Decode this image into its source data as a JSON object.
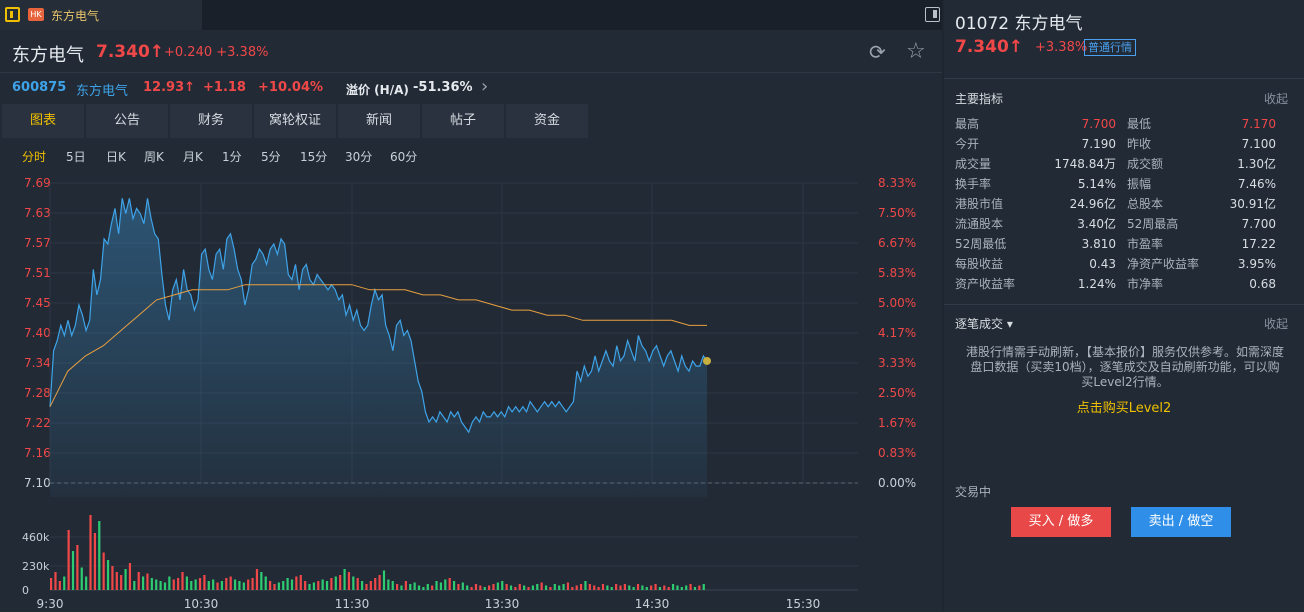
{
  "tab": {
    "market_badge": "HK",
    "name": "东方电气"
  },
  "header": {
    "name": "东方电气",
    "price": "7.340↑",
    "change": "+0.240",
    "pct": "+3.38%"
  },
  "ashare": {
    "code": "600875",
    "name": "东方电气",
    "price": "12.93↑",
    "change": "+1.18",
    "pct": "+10.04%",
    "premium_label": "溢价 (H/A)",
    "premium_value": "-51.36%"
  },
  "tabs": [
    "图表",
    "公告",
    "财务",
    "窝轮权证",
    "新闻",
    "帖子",
    "资金"
  ],
  "periods": [
    "分时",
    "5日",
    "日K",
    "周K",
    "月K",
    "1分",
    "5分",
    "15分",
    "30分",
    "60分"
  ],
  "icons": {
    "refresh": "refresh-icon",
    "star": "star-icon",
    "arrow": "chevron-right-icon"
  },
  "colors": {
    "up": "#f04848",
    "down": "#2ecc71",
    "line": "#3ea3e8",
    "avg": "#e8a040",
    "accent": "#f0c000"
  },
  "chart_data": {
    "type": "line",
    "y_left_ticks": [
      "7.69",
      "7.63",
      "7.57",
      "7.51",
      "7.45",
      "7.40",
      "7.34",
      "7.28",
      "7.22",
      "7.16",
      "7.10"
    ],
    "y_right_ticks": [
      "8.33%",
      "7.50%",
      "6.67%",
      "5.83%",
      "5.00%",
      "4.17%",
      "3.33%",
      "2.50%",
      "1.67%",
      "0.83%",
      "0.00%"
    ],
    "ylim": [
      7.1,
      7.69
    ],
    "x_ticks": [
      "9:30",
      "10:30",
      "11:30",
      "13:30",
      "14:30",
      "15:30"
    ],
    "volume_ticks": [
      "460k",
      "230k",
      "0"
    ],
    "price": [
      7.25,
      7.36,
      7.38,
      7.41,
      7.39,
      7.42,
      7.39,
      7.41,
      7.45,
      7.43,
      7.4,
      7.42,
      7.52,
      7.47,
      7.5,
      7.58,
      7.57,
      7.61,
      7.64,
      7.59,
      7.66,
      7.63,
      7.66,
      7.62,
      7.64,
      7.63,
      7.61,
      7.66,
      7.62,
      7.59,
      7.58,
      7.51,
      7.45,
      7.42,
      7.48,
      7.5,
      7.46,
      7.52,
      7.48,
      7.47,
      7.44,
      7.46,
      7.55,
      7.56,
      7.52,
      7.5,
      7.55,
      7.56,
      7.52,
      7.58,
      7.59,
      7.56,
      7.52,
      7.5,
      7.45,
      7.48,
      7.53,
      7.54,
      7.56,
      7.55,
      7.53,
      7.56,
      7.57,
      7.55,
      7.58,
      7.57,
      7.51,
      7.5,
      7.53,
      7.48,
      7.52,
      7.53,
      7.5,
      7.49,
      7.51,
      7.5,
      7.49,
      7.48,
      7.49,
      7.48,
      7.46,
      7.47,
      7.43,
      7.45,
      7.42,
      7.44,
      7.41,
      7.4,
      7.41,
      7.45,
      7.48,
      7.46,
      7.47,
      7.41,
      7.39,
      7.36,
      7.41,
      7.42,
      7.39,
      7.4,
      7.38,
      7.34,
      7.3,
      7.28,
      7.24,
      7.22,
      7.23,
      7.22,
      7.24,
      7.23,
      7.22,
      7.24,
      7.23,
      7.24,
      7.22,
      7.21,
      7.2,
      7.22,
      7.23,
      7.22,
      7.24,
      7.23,
      7.23,
      7.24,
      7.23,
      7.24,
      7.23,
      7.25,
      7.24,
      7.25,
      7.24,
      7.25,
      7.24,
      7.26,
      7.25,
      7.24,
      7.25,
      7.26,
      7.25,
      7.26,
      7.25,
      7.26,
      7.25,
      7.24,
      7.25,
      7.26,
      7.32,
      7.3,
      7.33,
      7.31,
      7.32,
      7.35,
      7.32,
      7.34,
      7.36,
      7.34,
      7.33,
      7.37,
      7.34,
      7.35,
      7.38,
      7.36,
      7.34,
      7.39,
      7.37,
      7.36,
      7.34,
      7.36,
      7.37,
      7.35,
      7.33,
      7.35,
      7.36,
      7.34,
      7.32,
      7.35,
      7.33,
      7.32,
      7.34,
      7.33,
      7.33,
      7.35,
      7.34
    ],
    "avg": [
      7.25,
      7.32,
      7.35,
      7.37,
      7.4,
      7.43,
      7.46,
      7.47,
      7.48,
      7.48,
      7.48,
      7.49,
      7.49,
      7.49,
      7.49,
      7.49,
      7.49,
      7.49,
      7.48,
      7.48,
      7.48,
      7.47,
      7.47,
      7.46,
      7.46,
      7.45,
      7.44,
      7.44,
      7.43,
      7.43,
      7.42,
      7.42,
      7.42,
      7.42,
      7.42,
      7.42,
      7.41,
      7.41
    ],
    "volume": [
      80,
      120,
      60,
      90,
      400,
      260,
      300,
      150,
      90,
      500,
      380,
      460,
      250,
      200,
      160,
      120,
      100,
      140,
      180,
      60,
      120,
      90,
      110,
      80,
      70,
      60,
      50,
      90,
      70,
      80,
      120,
      90,
      60,
      70,
      80,
      100,
      60,
      70,
      50,
      60,
      80,
      90,
      70,
      60,
      50,
      70,
      80,
      140,
      120,
      90,
      60,
      40,
      50,
      60,
      80,
      70,
      90,
      100,
      60,
      40,
      50,
      60,
      70,
      60,
      80,
      90,
      100,
      140,
      120,
      90,
      80,
      60,
      40,
      60,
      80,
      100,
      130,
      70,
      60,
      40,
      30,
      60,
      40,
      50,
      30,
      20,
      40,
      30,
      60,
      50,
      70,
      80,
      60,
      40,
      50,
      30,
      20,
      40,
      30,
      20,
      30,
      40,
      50,
      60,
      40,
      30,
      20,
      40,
      30,
      20,
      30,
      40,
      50,
      30,
      20,
      40,
      30,
      40,
      50,
      20,
      30,
      40,
      60,
      40,
      30,
      20,
      40,
      30,
      20,
      40,
      30,
      40,
      30,
      20,
      40,
      30,
      20,
      30,
      40,
      20,
      30,
      20,
      40,
      30,
      20,
      30,
      40,
      20,
      30,
      40
    ]
  },
  "right": {
    "code": "01072 东方电气",
    "price": "7.340↑",
    "pct": "+3.38%",
    "badge": "普通行情",
    "stats_title": "主要指标",
    "fold": "收起",
    "stats": [
      [
        "最高",
        "7.700",
        "最低",
        "7.170"
      ],
      [
        "今开",
        "7.190",
        "昨收",
        "7.100"
      ],
      [
        "成交量",
        "1748.84万",
        "成交额",
        "1.30亿"
      ],
      [
        "换手率",
        "5.14%",
        "振幅",
        "7.46%"
      ],
      [
        "港股市值",
        "24.96亿",
        "总股本",
        "30.91亿"
      ],
      [
        "流通股本",
        "3.40亿",
        "52周最高",
        "7.700"
      ],
      [
        "52周最低",
        "3.810",
        "市盈率",
        "17.22"
      ],
      [
        "每股收益",
        "0.43",
        "净资产收益率",
        "3.95%"
      ],
      [
        "资产收益率",
        "1.24%",
        "市净率",
        "0.68"
      ]
    ],
    "trades_title": "逐笔成交 ▾",
    "trades_fold": "收起",
    "notice": "港股行情需手动刷新，【基本报价】服务仅供参考。如需深度盘口数据（买卖10档），逐笔成交及自动刷新功能，可以购买Level2行情。",
    "level2": "点击购买Level2",
    "trading_status": "交易中",
    "buy": "买入 / 做多",
    "sell": "卖出 / 做空"
  }
}
